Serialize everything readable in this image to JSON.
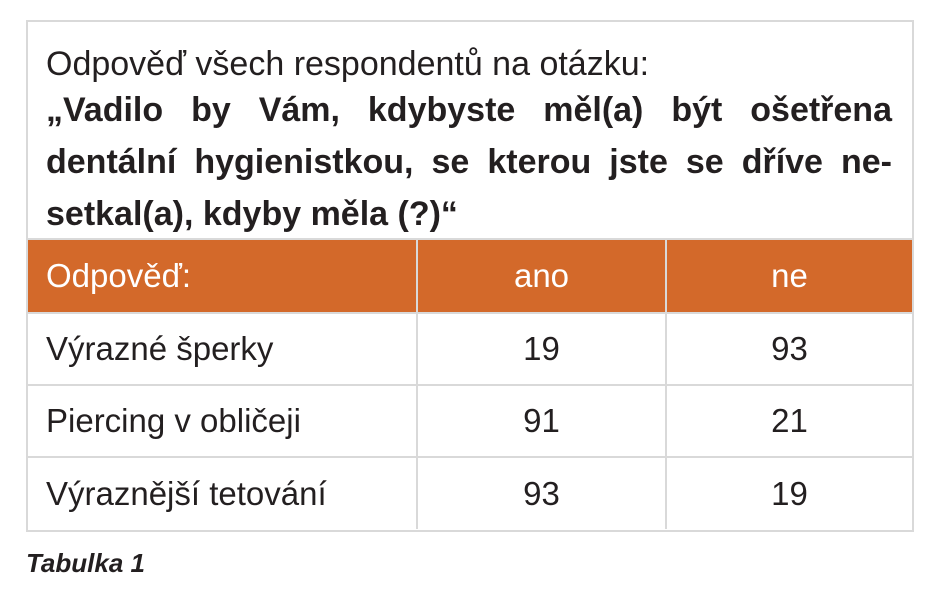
{
  "question": {
    "intro": "Odpověď všech respondentů na otázku:",
    "text": "„Vadilo by Vám, kdybyste měl(a) být ošetřena dentální hygienistkou, se kterou jste se dříve ne-setkal(a), kdyby měla (?)“"
  },
  "table": {
    "header": [
      "Odpověď:",
      "ano",
      "ne"
    ],
    "rows": [
      [
        "Výrazné šperky",
        "19",
        "93"
      ],
      [
        "Piercing v obličeji",
        "91",
        "21"
      ],
      [
        "Výraznější tetování",
        "93",
        "19"
      ]
    ]
  },
  "colors": {
    "header_bg": "#d3692a",
    "border": "#d9d9d9"
  },
  "caption": "Tabulka 1"
}
